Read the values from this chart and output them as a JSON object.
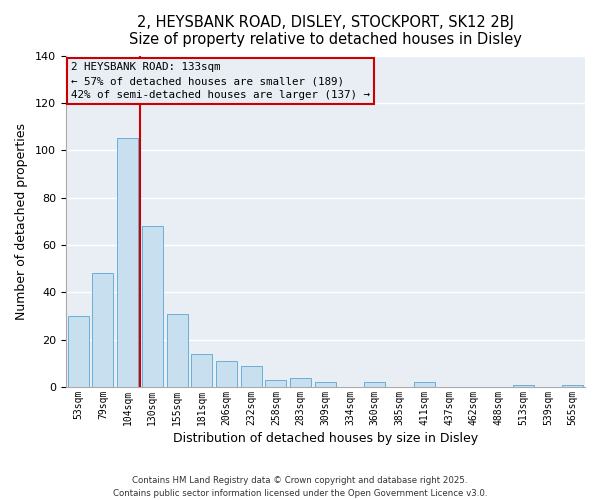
{
  "title": "2, HEYSBANK ROAD, DISLEY, STOCKPORT, SK12 2BJ",
  "subtitle": "Size of property relative to detached houses in Disley",
  "xlabel": "Distribution of detached houses by size in Disley",
  "ylabel": "Number of detached properties",
  "categories": [
    "53sqm",
    "79sqm",
    "104sqm",
    "130sqm",
    "155sqm",
    "181sqm",
    "206sqm",
    "232sqm",
    "258sqm",
    "283sqm",
    "309sqm",
    "334sqm",
    "360sqm",
    "385sqm",
    "411sqm",
    "437sqm",
    "462sqm",
    "488sqm",
    "513sqm",
    "539sqm",
    "565sqm"
  ],
  "values": [
    30,
    48,
    105,
    68,
    31,
    14,
    11,
    9,
    3,
    4,
    2,
    0,
    2,
    0,
    2,
    0,
    0,
    0,
    1,
    0,
    1
  ],
  "bar_color": "#c8dff0",
  "bar_edge_color": "#6aaed6",
  "ylim": [
    0,
    140
  ],
  "yticks": [
    0,
    20,
    40,
    60,
    80,
    100,
    120,
    140
  ],
  "annotation_box_text_line1": "2 HEYSBANK ROAD: 133sqm",
  "annotation_box_text_line2": "← 57% of detached houses are smaller (189)",
  "annotation_box_text_line3": "42% of semi-detached houses are larger (137) →",
  "property_bar_index": 3,
  "vline_color": "#cc0000",
  "footer_line1": "Contains HM Land Registry data © Crown copyright and database right 2025.",
  "footer_line2": "Contains public sector information licensed under the Open Government Licence v3.0.",
  "background_color": "#ffffff",
  "plot_bg_color": "#e8eef4"
}
